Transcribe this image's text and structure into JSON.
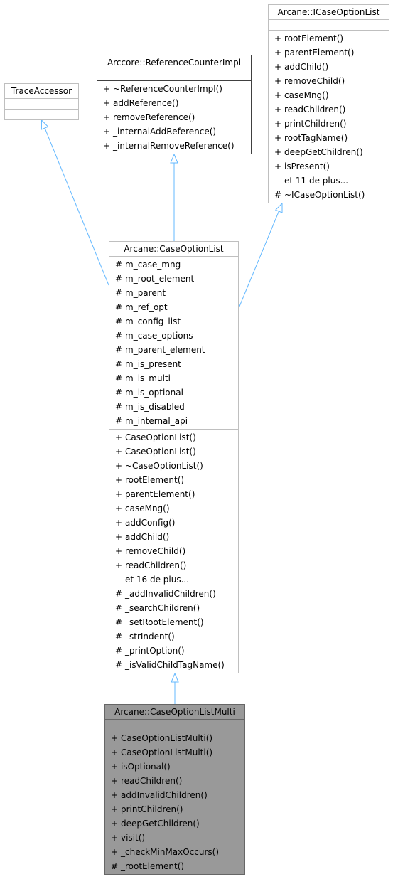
{
  "colors": {
    "edge": "#63b8ff",
    "focus_fill": "#999999",
    "border_light": "#bfbfbf",
    "border_dark": "#404040"
  },
  "nodes": {
    "trace_accessor": {
      "title": "TraceAccessor",
      "sections": [
        [],
        []
      ]
    },
    "reference_counter_impl": {
      "title": "Arccore::ReferenceCounterImpl",
      "sections": [
        [],
        [
          {
            "v": "+",
            "n": "~ReferenceCounterImpl()"
          },
          {
            "v": "+",
            "n": "addReference()"
          },
          {
            "v": "+",
            "n": "removeReference()"
          },
          {
            "v": "+",
            "n": "_internalAddReference()"
          },
          {
            "v": "+",
            "n": "_internalRemoveReference()"
          }
        ]
      ]
    },
    "icase_option_list": {
      "title": "Arcane::ICaseOptionList",
      "sections": [
        [],
        [
          {
            "v": "+",
            "n": "rootElement()"
          },
          {
            "v": "+",
            "n": "parentElement()"
          },
          {
            "v": "+",
            "n": "addChild()"
          },
          {
            "v": "+",
            "n": "removeChild()"
          },
          {
            "v": "+",
            "n": "caseMng()"
          },
          {
            "v": "+",
            "n": "readChildren()"
          },
          {
            "v": "+",
            "n": "printChildren()"
          },
          {
            "v": "+",
            "n": "rootTagName()"
          },
          {
            "v": "+",
            "n": "deepGetChildren()"
          },
          {
            "v": "+",
            "n": "isPresent()"
          },
          {
            "v": "",
            "n": "et 11 de plus..."
          },
          {
            "v": "#",
            "n": "~ICaseOptionList()"
          }
        ]
      ]
    },
    "case_option_list": {
      "title": "Arcane::CaseOptionList",
      "sections": [
        [
          {
            "v": "#",
            "n": "m_case_mng"
          },
          {
            "v": "#",
            "n": "m_root_element"
          },
          {
            "v": "#",
            "n": "m_parent"
          },
          {
            "v": "#",
            "n": "m_ref_opt"
          },
          {
            "v": "#",
            "n": "m_config_list"
          },
          {
            "v": "#",
            "n": "m_case_options"
          },
          {
            "v": "#",
            "n": "m_parent_element"
          },
          {
            "v": "#",
            "n": "m_is_present"
          },
          {
            "v": "#",
            "n": "m_is_multi"
          },
          {
            "v": "#",
            "n": "m_is_optional"
          },
          {
            "v": "#",
            "n": "m_is_disabled"
          },
          {
            "v": "#",
            "n": "m_internal_api"
          }
        ],
        [
          {
            "v": "+",
            "n": "CaseOptionList()"
          },
          {
            "v": "+",
            "n": "CaseOptionList()"
          },
          {
            "v": "+",
            "n": "~CaseOptionList()"
          },
          {
            "v": "+",
            "n": "rootElement()"
          },
          {
            "v": "+",
            "n": "parentElement()"
          },
          {
            "v": "+",
            "n": "caseMng()"
          },
          {
            "v": "+",
            "n": "addConfig()"
          },
          {
            "v": "+",
            "n": "addChild()"
          },
          {
            "v": "+",
            "n": "removeChild()"
          },
          {
            "v": "+",
            "n": "readChildren()"
          },
          {
            "v": "",
            "n": "et 16 de plus..."
          },
          {
            "v": "#",
            "n": "_addInvalidChildren()"
          },
          {
            "v": "#",
            "n": "_searchChildren()"
          },
          {
            "v": "#",
            "n": "_setRootElement()"
          },
          {
            "v": "#",
            "n": "_strIndent()"
          },
          {
            "v": "#",
            "n": "_printOption()"
          },
          {
            "v": "#",
            "n": "_isValidChildTagName()"
          }
        ]
      ]
    },
    "case_option_list_multi": {
      "title": "Arcane::CaseOptionListMulti",
      "sections": [
        [],
        [
          {
            "v": "+",
            "n": "CaseOptionListMulti()"
          },
          {
            "v": "+",
            "n": "CaseOptionListMulti()"
          },
          {
            "v": "+",
            "n": "isOptional()"
          },
          {
            "v": "+",
            "n": "readChildren()"
          },
          {
            "v": "+",
            "n": "addInvalidChildren()"
          },
          {
            "v": "+",
            "n": "printChildren()"
          },
          {
            "v": "+",
            "n": "deepGetChildren()"
          },
          {
            "v": "+",
            "n": "visit()"
          },
          {
            "v": "+",
            "n": "_checkMinMaxOccurs()"
          },
          {
            "v": "#",
            "n": "_rootElement()"
          }
        ]
      ]
    }
  },
  "edges": [
    {
      "from": "case_option_list",
      "to": "trace_accessor",
      "type": "inheritance"
    },
    {
      "from": "case_option_list",
      "to": "reference_counter_impl",
      "type": "inheritance"
    },
    {
      "from": "case_option_list",
      "to": "icase_option_list",
      "type": "inheritance"
    },
    {
      "from": "case_option_list_multi",
      "to": "case_option_list",
      "type": "inheritance"
    }
  ]
}
